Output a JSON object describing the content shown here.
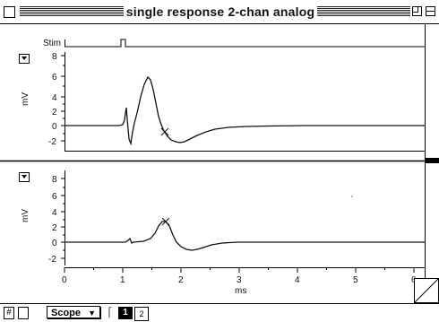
{
  "window": {
    "title": "single response 2-chan analog"
  },
  "top_panel": {
    "stim_label": "Stim",
    "y_unit": "mV",
    "y_ticks": [
      "8",
      "6",
      "4",
      "2",
      "0",
      "-2"
    ]
  },
  "bottom_panel": {
    "y_unit": "mV",
    "y_ticks": [
      "8",
      "6",
      "4",
      "2",
      "0",
      "-2"
    ]
  },
  "x_axis": {
    "label": "ms",
    "ticks": [
      "0",
      "1",
      "2",
      "3",
      "4",
      "5",
      "6"
    ]
  },
  "bottom_bar": {
    "scope_label": "Scope",
    "tab1_label": "1",
    "tab2_label": "2"
  },
  "icons": {
    "close_box": "close-box-icon",
    "zoom_box": "zoom-box-icon",
    "collapse_box": "collapse-box-icon",
    "panel_menu": "triangle-down-icon",
    "resize": "resize-icon"
  }
}
